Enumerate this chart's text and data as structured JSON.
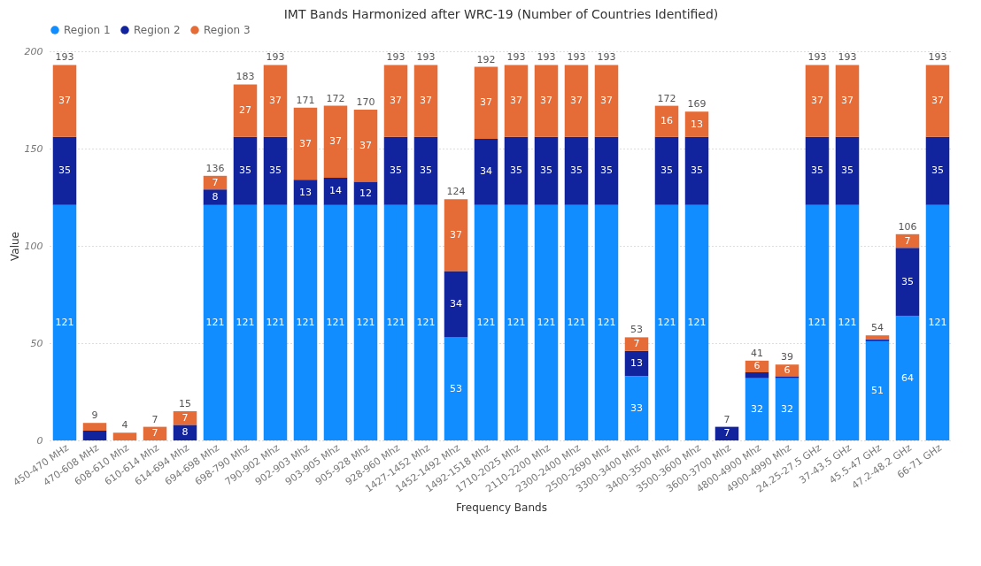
{
  "chart_data": {
    "type": "bar",
    "stacked": true,
    "title": "IMT Bands Harmonized after WRC-19 (Number of Countries Identified)",
    "xlabel": "Frequency Bands",
    "ylabel": "Value",
    "categories": [
      "450-470 MHz",
      "470-608 MHz",
      "608-610 Mhz",
      "610-614 Mhz",
      "614-694 Mhz",
      "694-698 Mhz",
      "698-790 Mhz",
      "790-902 Mhz",
      "902-903 Mhz",
      "903-905 Mhz",
      "905-928 Mhz",
      "928-960 Mhz",
      "1427-1452 Mhz",
      "1452-1492 Mhz",
      "1492-1518 Mhz",
      "1710-2025 Mhz",
      "2110-2200 Mhz",
      "2300-2400 Mhz",
      "2500-2690 Mhz",
      "3300-3400 Mhz",
      "3400-3500 Mhz",
      "3500-3600 Mhz",
      "3600-3700 Mhz",
      "4800-4900 Mhz",
      "4900-4990 Mhz",
      "24.25-27.5 GHz",
      "37-43.5 GHz",
      "45.5-47 GHz",
      "47.2-48.2 GHz",
      "66-71 GHz"
    ],
    "series": [
      {
        "name": "Region 1",
        "color": "#118dff",
        "values": [
          121,
          null,
          null,
          null,
          null,
          121,
          121,
          121,
          121,
          121,
          121,
          121,
          121,
          53,
          121,
          121,
          121,
          121,
          121,
          33,
          121,
          121,
          null,
          32,
          32,
          121,
          121,
          51,
          64,
          121
        ],
        "value_labels": [
          "121",
          null,
          null,
          null,
          null,
          "121",
          "121",
          "121",
          "121",
          "121",
          "121",
          "121",
          "121",
          "53",
          "121",
          "121",
          "121",
          "121",
          "121",
          "33",
          "121",
          "121",
          null,
          "32",
          "32",
          "121",
          "121",
          "51",
          "64",
          "121"
        ]
      },
      {
        "name": "Region 2",
        "color": "#12239e",
        "values": [
          35,
          5,
          null,
          null,
          8,
          8,
          35,
          35,
          13,
          14,
          12,
          35,
          35,
          34,
          34,
          35,
          35,
          35,
          35,
          13,
          35,
          35,
          7,
          3,
          1,
          35,
          35,
          1,
          35,
          35
        ],
        "value_labels": [
          "35",
          null,
          null,
          null,
          "8",
          "8",
          "35",
          "35",
          "13",
          "14",
          "12",
          "35",
          "35",
          "34",
          "34",
          "35",
          "35",
          "35",
          "35",
          "13",
          "35",
          "35",
          "7",
          null,
          null,
          "35",
          "35",
          null,
          "35",
          "35"
        ]
      },
      {
        "name": "Region 3",
        "color": "#e66c37",
        "values": [
          37,
          4,
          4,
          7,
          7,
          7,
          27,
          37,
          37,
          37,
          37,
          37,
          37,
          37,
          37,
          37,
          37,
          37,
          37,
          7,
          16,
          13,
          null,
          6,
          6,
          37,
          37,
          2,
          7,
          37
        ],
        "value_labels": [
          "37",
          null,
          null,
          "7",
          "7",
          "7",
          "27",
          "37",
          "37",
          "37",
          "37",
          "37",
          "37",
          "37",
          "37",
          "37",
          "37",
          "37",
          "37",
          "7",
          "16",
          "13",
          null,
          "6",
          "6",
          "37",
          "37",
          null,
          "7",
          "37"
        ]
      }
    ],
    "totals": [
      "193",
      "9",
      "4",
      "7",
      "15",
      "136",
      "183",
      "193",
      "171",
      "172",
      "170",
      "193",
      "193",
      "124",
      "192",
      "193",
      "193",
      "193",
      "193",
      "53",
      "172",
      "169",
      "7",
      "41",
      "39",
      "193",
      "193",
      "54",
      "106",
      "193"
    ],
    "ylim": [
      0,
      200
    ],
    "yticks": [
      0,
      50,
      100,
      150,
      200
    ],
    "grid": "y",
    "legend": "top"
  }
}
